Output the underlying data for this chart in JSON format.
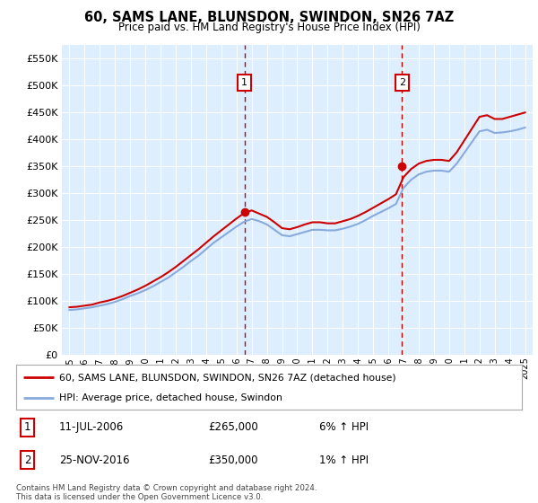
{
  "title": "60, SAMS LANE, BLUNSDON, SWINDON, SN26 7AZ",
  "subtitle": "Price paid vs. HM Land Registry's House Price Index (HPI)",
  "bg_color": "#ddeeff",
  "grid_color": "#ffffff",
  "legend_label_red": "60, SAMS LANE, BLUNSDON, SWINDON, SN26 7AZ (detached house)",
  "legend_label_blue": "HPI: Average price, detached house, Swindon",
  "footnote": "Contains HM Land Registry data © Crown copyright and database right 2024.\nThis data is licensed under the Open Government Licence v3.0.",
  "annotation1_label": "1",
  "annotation1_date": "11-JUL-2006",
  "annotation1_price": "£265,000",
  "annotation1_hpi": "6% ↑ HPI",
  "annotation1_year": 2006.53,
  "annotation1_value": 265000,
  "annotation2_label": "2",
  "annotation2_date": "25-NOV-2016",
  "annotation2_price": "£350,000",
  "annotation2_hpi": "1% ↑ HPI",
  "annotation2_year": 2016.9,
  "annotation2_value": 350000,
  "ylim": [
    0,
    575000
  ],
  "xlim_start": 1994.5,
  "xlim_end": 2025.5,
  "red_color": "#cc0000",
  "blue_color": "#88aadd",
  "years": [
    1995.0,
    1995.5,
    1996.0,
    1996.5,
    1997.0,
    1997.5,
    1998.0,
    1998.5,
    1999.0,
    1999.5,
    2000.0,
    2000.5,
    2001.0,
    2001.5,
    2002.0,
    2002.5,
    2003.0,
    2003.5,
    2004.0,
    2004.5,
    2005.0,
    2005.5,
    2006.0,
    2006.5,
    2007.0,
    2007.5,
    2008.0,
    2008.5,
    2009.0,
    2009.5,
    2010.0,
    2010.5,
    2011.0,
    2011.5,
    2012.0,
    2012.5,
    2013.0,
    2013.5,
    2014.0,
    2014.5,
    2015.0,
    2015.5,
    2016.0,
    2016.5,
    2017.0,
    2017.5,
    2018.0,
    2018.5,
    2019.0,
    2019.5,
    2020.0,
    2020.5,
    2021.0,
    2021.5,
    2022.0,
    2022.5,
    2023.0,
    2023.5,
    2024.0,
    2024.5,
    2025.0
  ],
  "hpi_values": [
    83000,
    84000,
    86000,
    88000,
    91000,
    94000,
    98000,
    103000,
    109000,
    114000,
    120000,
    127000,
    135000,
    143000,
    153000,
    163000,
    174000,
    184000,
    196000,
    208000,
    218000,
    228000,
    238000,
    247000,
    252000,
    248000,
    242000,
    232000,
    222000,
    220000,
    224000,
    228000,
    232000,
    232000,
    231000,
    231000,
    234000,
    238000,
    243000,
    250000,
    258000,
    265000,
    272000,
    280000,
    310000,
    325000,
    335000,
    340000,
    342000,
    342000,
    340000,
    355000,
    375000,
    395000,
    415000,
    418000,
    412000,
    413000,
    415000,
    418000,
    422000
  ],
  "red_values": [
    88000,
    89000,
    91000,
    93000,
    97000,
    100000,
    104000,
    109000,
    115000,
    121000,
    128000,
    136000,
    144000,
    153000,
    163000,
    174000,
    185000,
    196000,
    208000,
    220000,
    231000,
    242000,
    253000,
    263000,
    268000,
    262000,
    256000,
    246000,
    235000,
    233000,
    237000,
    242000,
    246000,
    246000,
    244000,
    244000,
    248000,
    252000,
    258000,
    265000,
    273000,
    281000,
    289000,
    298000,
    330000,
    345000,
    355000,
    360000,
    362000,
    362000,
    360000,
    376000,
    398000,
    420000,
    442000,
    445000,
    438000,
    438000,
    442000,
    446000,
    450000
  ]
}
